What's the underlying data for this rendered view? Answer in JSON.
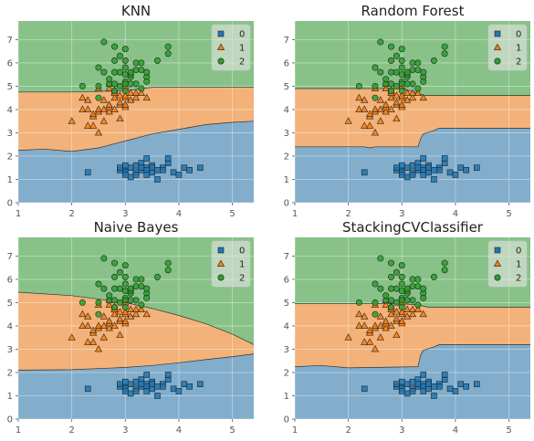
{
  "colors": {
    "class_0": "#1f77b4",
    "class_1": "#ff7f0e",
    "class_2": "#2ca02c",
    "region_alpha": 0.5,
    "plot_background": "#e5e5e5",
    "grid": "#ffffff"
  },
  "chart_data": [
    {
      "type": "scatter",
      "title": "KNN",
      "xlim": [
        1,
        5.4
      ],
      "ylim": [
        0,
        7.8
      ],
      "xticks": [
        1,
        2,
        3,
        4,
        5
      ],
      "yticks": [
        0,
        1,
        2,
        3,
        4,
        5,
        6,
        7
      ],
      "grid": true,
      "legend": {
        "position": "top-right",
        "entries": [
          "0",
          "1",
          "2"
        ]
      },
      "decision_boundaries": {
        "between_0_1": [
          [
            1,
            2.25
          ],
          [
            1.5,
            2.3
          ],
          [
            2,
            2.2
          ],
          [
            2.5,
            2.35
          ],
          [
            3,
            2.65
          ],
          [
            3.5,
            2.95
          ],
          [
            4,
            3.15
          ],
          [
            4.5,
            3.35
          ],
          [
            5,
            3.45
          ],
          [
            5.4,
            3.5
          ]
        ],
        "between_1_2": [
          [
            1,
            4.75
          ],
          [
            2,
            4.75
          ],
          [
            3,
            4.8
          ],
          [
            3.5,
            4.95
          ],
          [
            4,
            4.95
          ],
          [
            5.4,
            4.95
          ]
        ]
      }
    },
    {
      "type": "scatter",
      "title": "Random Forest",
      "xlim": [
        1,
        5.4
      ],
      "ylim": [
        0,
        7.8
      ],
      "xticks": [
        1,
        2,
        3,
        4,
        5
      ],
      "yticks": [
        0,
        1,
        2,
        3,
        4,
        5,
        6,
        7
      ],
      "grid": true,
      "legend": {
        "position": "top-right",
        "entries": [
          "0",
          "1",
          "2"
        ]
      },
      "decision_boundaries": {
        "between_0_1": [
          [
            1,
            2.4
          ],
          [
            2.3,
            2.4
          ],
          [
            2.4,
            2.35
          ],
          [
            2.5,
            2.4
          ],
          [
            3.3,
            2.4
          ],
          [
            3.35,
            2.75
          ],
          [
            3.4,
            2.95
          ],
          [
            3.6,
            3.1
          ],
          [
            3.7,
            3.2
          ],
          [
            5.4,
            3.2
          ]
        ],
        "between_1_2": [
          [
            1,
            4.9
          ],
          [
            3,
            4.9
          ],
          [
            3.3,
            4.7
          ],
          [
            3.4,
            4.6
          ],
          [
            5.4,
            4.6
          ]
        ]
      }
    },
    {
      "type": "scatter",
      "title": "Naive Bayes",
      "xlim": [
        1,
        5.4
      ],
      "ylim": [
        0,
        7.8
      ],
      "xticks": [
        1,
        2,
        3,
        4,
        5
      ],
      "yticks": [
        0,
        1,
        2,
        3,
        4,
        5,
        6,
        7
      ],
      "grid": true,
      "legend": {
        "position": "top-right",
        "entries": [
          "0",
          "1",
          "2"
        ]
      },
      "decision_boundaries": {
        "between_0_1": [
          [
            1,
            2.1
          ],
          [
            2,
            2.12
          ],
          [
            3,
            2.22
          ],
          [
            3.5,
            2.3
          ],
          [
            4,
            2.42
          ],
          [
            4.5,
            2.55
          ],
          [
            5,
            2.68
          ],
          [
            5.4,
            2.8
          ]
        ],
        "between_1_2": [
          [
            1,
            5.45
          ],
          [
            2,
            5.3
          ],
          [
            3,
            5
          ],
          [
            3.5,
            4.75
          ],
          [
            4,
            4.45
          ],
          [
            4.5,
            4.1
          ],
          [
            5,
            3.65
          ],
          [
            5.4,
            3.2
          ]
        ]
      }
    },
    {
      "type": "scatter",
      "title": "StackingCVClassifier",
      "xlim": [
        1,
        5.4
      ],
      "ylim": [
        0,
        7.8
      ],
      "xticks": [
        1,
        2,
        3,
        4,
        5
      ],
      "yticks": [
        0,
        1,
        2,
        3,
        4,
        5,
        6,
        7
      ],
      "grid": true,
      "legend": {
        "position": "top-right",
        "entries": [
          "0",
          "1",
          "2"
        ]
      },
      "decision_boundaries": {
        "between_0_1": [
          [
            1,
            2.25
          ],
          [
            1.5,
            2.3
          ],
          [
            2,
            2.2
          ],
          [
            3.3,
            2.25
          ],
          [
            3.35,
            2.75
          ],
          [
            3.4,
            2.95
          ],
          [
            3.6,
            3.1
          ],
          [
            3.7,
            3.2
          ],
          [
            5.4,
            3.2
          ]
        ],
        "between_1_2": [
          [
            1,
            4.95
          ],
          [
            3,
            4.95
          ],
          [
            3.3,
            4.9
          ],
          [
            3.5,
            4.8
          ],
          [
            5.4,
            4.8
          ]
        ]
      }
    }
  ],
  "scatter_points": {
    "class_0": [
      [
        2.3,
        1.3
      ],
      [
        2.9,
        1.4
      ],
      [
        3.0,
        1.4
      ],
      [
        3.0,
        1.3
      ],
      [
        3.1,
        1.5
      ],
      [
        3.2,
        1.3
      ],
      [
        3.2,
        1.6
      ],
      [
        3.3,
        1.4
      ],
      [
        3.3,
        1.7
      ],
      [
        3.4,
        1.5
      ],
      [
        3.4,
        1.4
      ],
      [
        3.4,
        1.2
      ],
      [
        3.5,
        1.3
      ],
      [
        3.5,
        1.6
      ],
      [
        3.6,
        1.4
      ],
      [
        3.7,
        1.5
      ],
      [
        3.8,
        1.7
      ],
      [
        3.8,
        1.9
      ],
      [
        3.9,
        1.3
      ],
      [
        4.0,
        1.2
      ],
      [
        4.1,
        1.5
      ],
      [
        4.2,
        1.4
      ],
      [
        4.4,
        1.5
      ],
      [
        3.1,
        1.1
      ],
      [
        3.4,
        1.9
      ],
      [
        3.6,
        1.0
      ],
      [
        3.0,
        1.6
      ],
      [
        3.2,
        1.2
      ],
      [
        3.5,
        1.5
      ],
      [
        2.9,
        1.5
      ],
      [
        3.7,
        1.4
      ],
      [
        3.3,
        1.5
      ],
      [
        3.0,
        1.2
      ]
    ],
    "class_1": [
      [
        2.0,
        3.5
      ],
      [
        2.2,
        4.0
      ],
      [
        2.2,
        4.5
      ],
      [
        2.3,
        3.3
      ],
      [
        2.3,
        4.0
      ],
      [
        2.3,
        4.4
      ],
      [
        2.4,
        3.3
      ],
      [
        2.4,
        3.7
      ],
      [
        2.4,
        3.8
      ],
      [
        2.5,
        3.0
      ],
      [
        2.5,
        3.9
      ],
      [
        2.5,
        4.0
      ],
      [
        2.5,
        4.9
      ],
      [
        2.6,
        3.5
      ],
      [
        2.6,
        4.0
      ],
      [
        2.6,
        4.4
      ],
      [
        2.7,
        3.9
      ],
      [
        2.7,
        4.1
      ],
      [
        2.7,
        4.2
      ],
      [
        2.7,
        4.9
      ],
      [
        2.8,
        4.0
      ],
      [
        2.8,
        4.5
      ],
      [
        2.8,
        4.7
      ],
      [
        2.9,
        3.6
      ],
      [
        2.9,
        4.2
      ],
      [
        2.9,
        4.3
      ],
      [
        2.9,
        4.6
      ],
      [
        3.0,
        4.1
      ],
      [
        3.0,
        4.2
      ],
      [
        3.0,
        4.5
      ],
      [
        3.0,
        4.6
      ],
      [
        3.1,
        4.4
      ],
      [
        3.1,
        4.7
      ],
      [
        3.2,
        4.5
      ],
      [
        3.2,
        4.7
      ],
      [
        3.3,
        4.7
      ],
      [
        3.4,
        4.5
      ],
      [
        2.8,
        4.8
      ],
      [
        3.0,
        5.0
      ],
      [
        2.7,
        5.1
      ]
    ],
    "class_2": [
      [
        2.2,
        5.0
      ],
      [
        2.5,
        4.5
      ],
      [
        2.5,
        5.0
      ],
      [
        2.5,
        5.8
      ],
      [
        2.6,
        5.6
      ],
      [
        2.6,
        6.9
      ],
      [
        2.7,
        5.1
      ],
      [
        2.7,
        5.3
      ],
      [
        2.8,
        4.8
      ],
      [
        2.8,
        5.1
      ],
      [
        2.8,
        5.6
      ],
      [
        2.8,
        6.1
      ],
      [
        2.8,
        6.7
      ],
      [
        2.9,
        5.6
      ],
      [
        2.9,
        6.3
      ],
      [
        3.0,
        4.8
      ],
      [
        3.0,
        5.2
      ],
      [
        3.0,
        5.5
      ],
      [
        3.0,
        5.8
      ],
      [
        3.0,
        6.1
      ],
      [
        3.0,
        6.6
      ],
      [
        3.1,
        5.4
      ],
      [
        3.1,
        5.5
      ],
      [
        3.1,
        5.6
      ],
      [
        3.2,
        5.7
      ],
      [
        3.2,
        6.0
      ],
      [
        3.3,
        5.7
      ],
      [
        3.3,
        6.0
      ],
      [
        3.4,
        5.4
      ],
      [
        3.4,
        5.6
      ],
      [
        3.6,
        6.1
      ],
      [
        3.8,
        6.4
      ],
      [
        3.8,
        6.7
      ],
      [
        3.2,
        5.1
      ],
      [
        2.9,
        5.0
      ],
      [
        3.1,
        5.1
      ],
      [
        3.0,
        5.1
      ],
      [
        3.4,
        5.2
      ],
      [
        3.3,
        4.9
      ]
    ]
  }
}
